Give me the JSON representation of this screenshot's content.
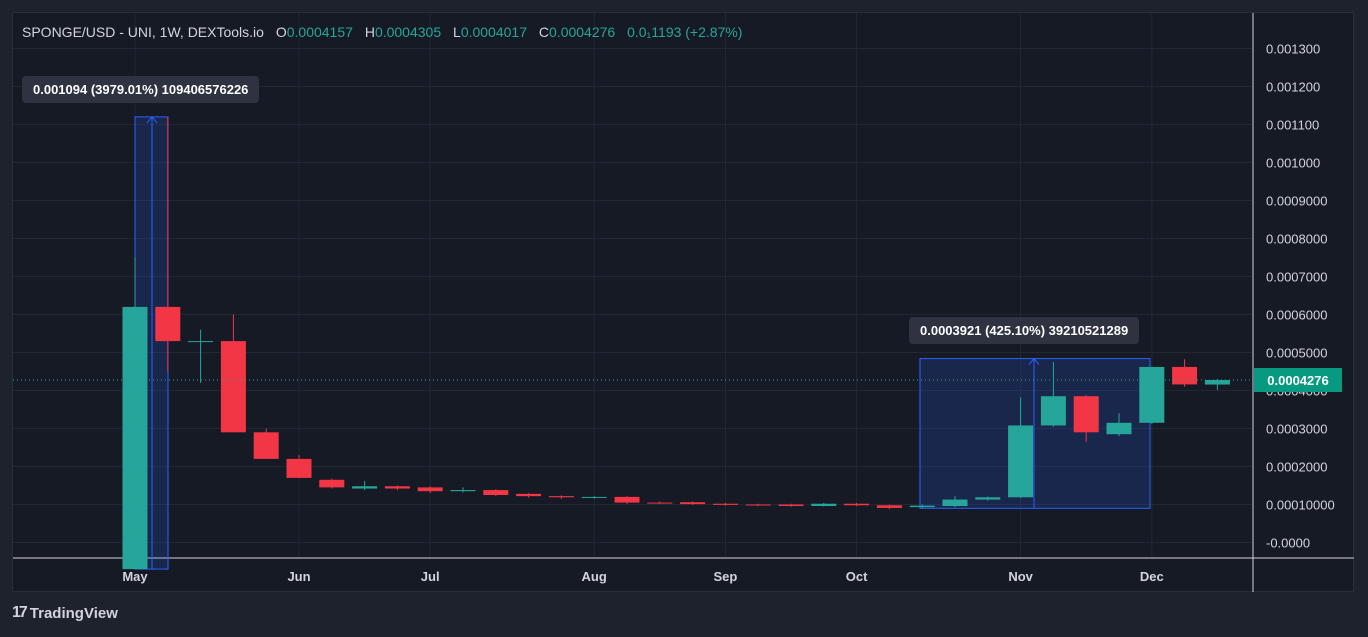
{
  "legend": {
    "symbol": "SPONGE/USD - UNI, 1W, DEXTools.io",
    "o_label": "O",
    "o_value": "0.0004157",
    "h_label": "H",
    "h_value": "0.0004305",
    "l_label": "L",
    "l_value": "0.0004017",
    "c_label": "C",
    "c_value": "0.0004276",
    "change": "0.0₁1193 (+2.87%)"
  },
  "brand": "TradingView",
  "last_price_label": "0.0004276",
  "colors": {
    "up": "#26a69a",
    "down": "#f23645",
    "background": "#161a25",
    "measure": "#2962ff"
  },
  "chart_data": {
    "type": "candlestick",
    "xlabel": "",
    "ylabel": "",
    "ylim": [
      -5e-05,
      0.00135
    ],
    "y_ticks": [
      "0.001300",
      "0.001200",
      "0.001100",
      "0.001000",
      "0.0009000",
      "0.0008000",
      "0.0007000",
      "0.0006000",
      "0.0005000",
      "0.0004000",
      "0.0003000",
      "0.0002000",
      "0.00010000",
      "-0.0000"
    ],
    "y_tick_values": [
      0.0013,
      0.0012,
      0.0011,
      0.001,
      0.0009,
      0.0008,
      0.0007,
      0.0006,
      0.0005,
      0.0004,
      0.0003,
      0.0002,
      0.0001,
      0.0
    ],
    "x_tick_labels": [
      {
        "label": "May",
        "week": 0
      },
      {
        "label": "Jun",
        "week": 5
      },
      {
        "label": "Jul",
        "week": 9
      },
      {
        "label": "Aug",
        "week": 14
      },
      {
        "label": "Sep",
        "week": 18
      },
      {
        "label": "Oct",
        "week": 22
      },
      {
        "label": "Nov",
        "week": 27
      },
      {
        "label": "Dec",
        "week": 31
      }
    ],
    "candles": [
      {
        "week": 0,
        "o": -7e-05,
        "h": 0.00075,
        "l": -7e-05,
        "c": 0.00062
      },
      {
        "week": 1,
        "o": 0.00062,
        "h": 0.00112,
        "l": 0.00045,
        "c": 0.00053
      },
      {
        "week": 2,
        "o": 0.00053,
        "h": 0.00056,
        "l": 0.00042,
        "c": 0.00053
      },
      {
        "week": 3,
        "o": 0.00053,
        "h": 0.0006,
        "l": 0.00029,
        "c": 0.00029
      },
      {
        "week": 4,
        "o": 0.00029,
        "h": 0.0003,
        "l": 0.00022,
        "c": 0.00022
      },
      {
        "week": 5,
        "o": 0.00022,
        "h": 0.00023,
        "l": 0.00017,
        "c": 0.00017
      },
      {
        "week": 6,
        "o": 0.000165,
        "h": 0.000168,
        "l": 0.000142,
        "c": 0.000145
      },
      {
        "week": 7,
        "o": 0.000142,
        "h": 0.000162,
        "l": 0.000138,
        "c": 0.000148
      },
      {
        "week": 8,
        "o": 0.000148,
        "h": 0.00015,
        "l": 0.000138,
        "c": 0.000142
      },
      {
        "week": 9,
        "o": 0.000145,
        "h": 0.000148,
        "l": 0.00013,
        "c": 0.000135
      },
      {
        "week": 10,
        "o": 0.000135,
        "h": 0.000145,
        "l": 0.000132,
        "c": 0.000138
      },
      {
        "week": 11,
        "o": 0.000138,
        "h": 0.00014,
        "l": 0.000122,
        "c": 0.000125
      },
      {
        "week": 12,
        "o": 0.000128,
        "h": 0.00013,
        "l": 0.000118,
        "c": 0.000122
      },
      {
        "week": 13,
        "o": 0.000122,
        "h": 0.000124,
        "l": 0.000115,
        "c": 0.000119
      },
      {
        "week": 14,
        "o": 0.000118,
        "h": 0.000122,
        "l": 0.000115,
        "c": 0.00012
      },
      {
        "week": 15,
        "o": 0.00012,
        "h": 0.000122,
        "l": 0.000102,
        "c": 0.000105
      },
      {
        "week": 16,
        "o": 0.000105,
        "h": 0.000108,
        "l": 0.000101,
        "c": 0.000103
      },
      {
        "week": 17,
        "o": 0.000106,
        "h": 0.000108,
        "l": 9.9e-05,
        "c": 0.000101
      },
      {
        "week": 18,
        "o": 0.000102,
        "h": 0.000104,
        "l": 9.7e-05,
        "c": 9.9e-05
      },
      {
        "week": 19,
        "o": 0.0001,
        "h": 0.000102,
        "l": 9.6e-05,
        "c": 9.8e-05
      },
      {
        "week": 20,
        "o": 0.0001,
        "h": 0.000102,
        "l": 9.4e-05,
        "c": 9.6e-05
      },
      {
        "week": 21,
        "o": 9.6e-05,
        "h": 0.000104,
        "l": 9.5e-05,
        "c": 0.000102
      },
      {
        "week": 22,
        "o": 0.000102,
        "h": 0.000104,
        "l": 9.6e-05,
        "c": 9.8e-05
      },
      {
        "week": 23,
        "o": 9.8e-05,
        "h": 0.0001,
        "l": 8.8e-05,
        "c": 9.1e-05
      },
      {
        "week": 24,
        "o": 9.3e-05,
        "h": 0.0001,
        "l": 9e-05,
        "c": 9.7e-05
      },
      {
        "week": 25,
        "o": 9.6e-05,
        "h": 0.000122,
        "l": 9.3e-05,
        "c": 0.000113
      },
      {
        "week": 26,
        "o": 0.000113,
        "h": 0.000121,
        "l": 0.00011,
        "c": 0.000119
      },
      {
        "week": 27,
        "o": 0.000119,
        "h": 0.000382,
        "l": 0.000117,
        "c": 0.000308
      },
      {
        "week": 28,
        "o": 0.000308,
        "h": 0.000475,
        "l": 0.000305,
        "c": 0.000385
      },
      {
        "week": 29,
        "o": 0.000385,
        "h": 0.000388,
        "l": 0.000265,
        "c": 0.00029
      },
      {
        "week": 30,
        "o": 0.000285,
        "h": 0.00034,
        "l": 0.00028,
        "c": 0.000315
      },
      {
        "week": 31,
        "o": 0.000315,
        "h": 0.000462,
        "l": 0.000312,
        "c": 0.000462
      },
      {
        "week": 32,
        "o": 0.000462,
        "h": 0.000482,
        "l": 0.00041,
        "c": 0.000416
      },
      {
        "week": 33,
        "o": 0.0004157,
        "h": 0.0004305,
        "l": 0.0004017,
        "c": 0.0004276
      }
    ],
    "measurements": [
      {
        "label": "0.001094 (3979.01%) 109406576226",
        "from_week": 0.5,
        "to_week": 1.0,
        "low": -7e-05,
        "high": 0.00112
      },
      {
        "label": "0.0003921 (425.10%) 39210521289",
        "from_week": 24.2,
        "to_week": 31.0,
        "low": 9e-05,
        "high": 0.000484
      }
    ],
    "last_price": 0.0004276,
    "grid": true
  }
}
